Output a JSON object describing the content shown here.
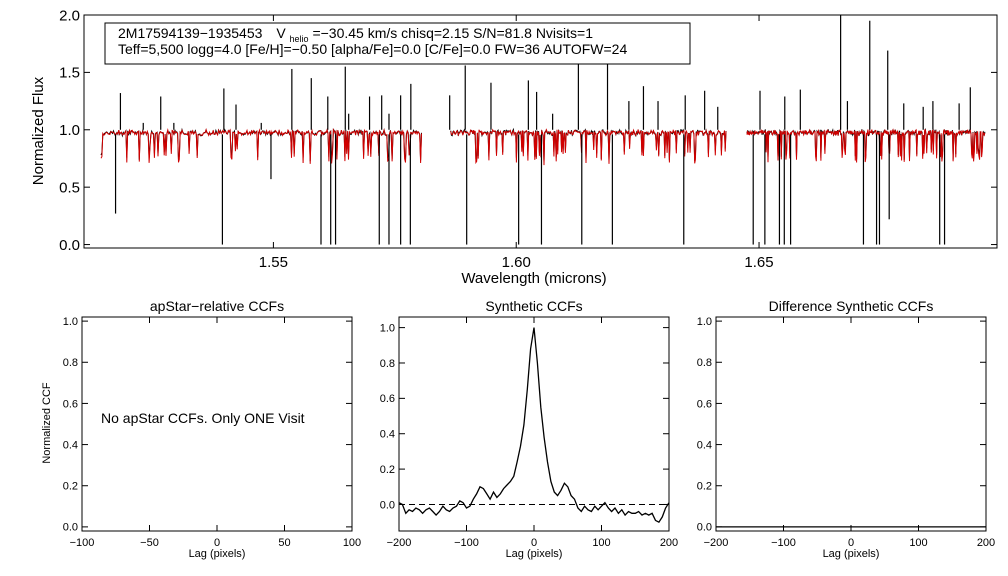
{
  "chart_data": [
    {
      "type": "line",
      "id": "spectrum",
      "ylabel": "Normalized Flux",
      "xlabel": "Wavelength (microns)",
      "xlim": [
        1.511,
        1.699
      ],
      "ylim": [
        -0.03,
        2.0
      ],
      "xticks": [
        1.55,
        1.6,
        1.65
      ],
      "xtick_labels": [
        "1.55",
        "1.60",
        "1.65"
      ],
      "yticks": [
        0.0,
        0.5,
        1.0,
        1.5,
        2.0
      ],
      "ytick_labels": [
        "0.0",
        "0.5",
        "1.0",
        "1.5",
        "2.0"
      ],
      "info_line1": {
        "star": "2M17594139−1935453",
        "v_label": "V",
        "v_sub": "helio",
        "v_rest": "=−30.45 km/s  chisq=2.15  S/N=81.8  Nvisits=1"
      },
      "info_line2": "Teff=5,500 logg=4.0 [Fe/H]=−0.50 [alpha/Fe]=0.0 [C/Fe]=0.0 FW=36 AUTOFW=24",
      "series": [
        {
          "role": "observed",
          "color": "#000000",
          "chips": [
            [
              1.5145,
              1.5805
            ],
            [
              1.5865,
              1.6432
            ],
            [
              1.6475,
              1.6965
            ]
          ]
        },
        {
          "role": "model",
          "color": "#d00000",
          "chips": [
            [
              1.5145,
              1.5805
            ],
            [
              1.5865,
              1.6432
            ],
            [
              1.6475,
              1.6965
            ]
          ]
        }
      ],
      "emission_spikes": [
        [
          1.5185,
          1.32
        ],
        [
          1.5232,
          1.06
        ],
        [
          1.5268,
          1.29
        ],
        [
          1.5295,
          1.06
        ],
        [
          1.5398,
          1.36
        ],
        [
          1.5423,
          1.22
        ],
        [
          1.5475,
          1.06
        ],
        [
          1.5538,
          1.53
        ],
        [
          1.5578,
          1.45
        ],
        [
          1.5612,
          1.29
        ],
        [
          1.5648,
          1.55
        ],
        [
          1.5655,
          1.14
        ],
        [
          1.5698,
          1.29
        ],
        [
          1.5723,
          1.3
        ],
        [
          1.5738,
          1.14
        ],
        [
          1.5762,
          1.3
        ],
        [
          1.5783,
          1.4
        ],
        [
          1.5863,
          1.3
        ],
        [
          1.5895,
          1.56
        ],
        [
          1.5948,
          1.41
        ],
        [
          1.6025,
          1.43
        ],
        [
          1.6042,
          1.33
        ],
        [
          1.6075,
          1.14
        ],
        [
          1.6128,
          1.79
        ],
        [
          1.6188,
          1.79
        ],
        [
          1.6232,
          1.25
        ],
        [
          1.6262,
          1.38
        ],
        [
          1.6292,
          1.25
        ],
        [
          1.6348,
          1.3
        ],
        [
          1.6388,
          1.34
        ],
        [
          1.6415,
          1.2
        ],
        [
          1.6502,
          1.34
        ],
        [
          1.6553,
          1.29
        ],
        [
          1.6585,
          1.35
        ],
        [
          1.6668,
          2.0
        ],
        [
          1.6682,
          1.25
        ],
        [
          1.6728,
          1.95
        ],
        [
          1.6765,
          1.69
        ],
        [
          1.6798,
          1.23
        ],
        [
          1.6838,
          1.2
        ],
        [
          1.6858,
          1.25
        ],
        [
          1.6912,
          1.23
        ],
        [
          1.6935,
          1.37
        ]
      ],
      "absorption_spikes": [
        [
          1.5175,
          0.27
        ],
        [
          1.5395,
          0.0
        ],
        [
          1.5495,
          0.57
        ],
        [
          1.5598,
          0.0
        ],
        [
          1.5618,
          0.0
        ],
        [
          1.5628,
          0.0
        ],
        [
          1.5718,
          0.0
        ],
        [
          1.5738,
          0.0
        ],
        [
          1.5762,
          0.0
        ],
        [
          1.5782,
          0.0
        ],
        [
          1.5898,
          0.0
        ],
        [
          1.6005,
          0.0
        ],
        [
          1.6052,
          0.0
        ],
        [
          1.6135,
          0.0
        ],
        [
          1.6198,
          0.0
        ],
        [
          1.6345,
          0.0
        ],
        [
          1.6488,
          0.0
        ],
        [
          1.6512,
          0.0
        ],
        [
          1.6542,
          0.0
        ],
        [
          1.6552,
          0.0
        ],
        [
          1.6565,
          0.0
        ],
        [
          1.6715,
          0.0
        ],
        [
          1.6742,
          0.0
        ],
        [
          1.6748,
          0.0
        ],
        [
          1.6768,
          0.22
        ],
        [
          1.6872,
          0.0
        ],
        [
          1.6882,
          0.0
        ]
      ]
    },
    {
      "type": "line",
      "id": "apstar-ccf",
      "title": "apStar−relative CCFs",
      "ylabel": "Normalized CCF",
      "xlabel": "Lag (pixels)",
      "xlim": [
        -100,
        100
      ],
      "ylim": [
        -0.02,
        1.02
      ],
      "xticks": [
        -100,
        -50,
        0,
        50,
        100
      ],
      "xtick_labels": [
        "−100",
        "−50",
        "0",
        "50",
        "100"
      ],
      "yticks": [
        0.0,
        0.2,
        0.4,
        0.6,
        0.8,
        1.0
      ],
      "ytick_labels": [
        "0.0",
        "0.2",
        "0.4",
        "0.6",
        "0.8",
        "1.0"
      ],
      "message": "No apStar CCFs.  Only ONE Visit",
      "series": []
    },
    {
      "type": "line",
      "id": "synthetic-ccf",
      "title": "Synthetic CCFs",
      "xlabel": "Lag (pixels)",
      "xlim": [
        -200,
        200
      ],
      "ylim": [
        -0.15,
        1.06
      ],
      "xticks": [
        -200,
        -100,
        0,
        100,
        200
      ],
      "xtick_labels": [
        "−200",
        "−100",
        "0",
        "100",
        "200"
      ],
      "yticks": [
        0.0,
        0.2,
        0.4,
        0.6,
        0.8,
        1.0
      ],
      "ytick_labels": [
        "0.0",
        "0.2",
        "0.4",
        "0.6",
        "0.8",
        "1.0"
      ],
      "zero_line": true,
      "series": [
        {
          "color": "#000000",
          "x": [
            -200,
            -195,
            -190,
            -185,
            -180,
            -175,
            -170,
            -165,
            -160,
            -155,
            -150,
            -145,
            -140,
            -135,
            -130,
            -125,
            -120,
            -115,
            -110,
            -105,
            -100,
            -95,
            -90,
            -85,
            -80,
            -75,
            -70,
            -65,
            -60,
            -55,
            -50,
            -45,
            -40,
            -35,
            -30,
            -25,
            -20,
            -15,
            -10,
            -5,
            0,
            5,
            10,
            15,
            20,
            25,
            30,
            35,
            40,
            45,
            50,
            55,
            60,
            65,
            70,
            75,
            80,
            85,
            90,
            95,
            100,
            105,
            110,
            115,
            120,
            125,
            130,
            135,
            140,
            145,
            150,
            155,
            160,
            165,
            170,
            175,
            180,
            185,
            190,
            195,
            200
          ],
          "y": [
            0.01,
            0.0,
            -0.05,
            -0.03,
            -0.04,
            -0.02,
            -0.03,
            -0.05,
            -0.03,
            -0.02,
            -0.04,
            -0.06,
            -0.04,
            -0.01,
            -0.03,
            -0.04,
            -0.02,
            -0.01,
            0.02,
            0.01,
            -0.02,
            -0.01,
            0.03,
            0.06,
            0.1,
            0.09,
            0.06,
            0.03,
            0.07,
            0.04,
            0.06,
            0.09,
            0.11,
            0.13,
            0.16,
            0.24,
            0.33,
            0.45,
            0.65,
            0.88,
            1.0,
            0.8,
            0.55,
            0.38,
            0.24,
            0.13,
            0.07,
            0.05,
            0.08,
            0.12,
            0.1,
            0.05,
            0.03,
            -0.02,
            -0.04,
            -0.01,
            -0.03,
            -0.04,
            -0.01,
            -0.03,
            -0.01,
            0.01,
            -0.02,
            -0.04,
            -0.02,
            -0.05,
            -0.03,
            -0.06,
            -0.04,
            -0.05,
            -0.05,
            -0.04,
            -0.06,
            -0.05,
            -0.06,
            -0.05,
            -0.09,
            -0.1,
            -0.07,
            -0.02,
            0.01
          ]
        }
      ]
    },
    {
      "type": "line",
      "id": "difference-ccf",
      "title": "Difference Synthetic CCFs",
      "xlabel": "Lag (pixels)",
      "xlim": [
        -200,
        200
      ],
      "ylim": [
        -0.02,
        1.02
      ],
      "xticks": [
        -200,
        -100,
        0,
        100,
        200
      ],
      "xtick_labels": [
        "−200",
        "−100",
        "0",
        "100",
        "200"
      ],
      "yticks": [
        0.0,
        0.2,
        0.4,
        0.6,
        0.8,
        1.0
      ],
      "ytick_labels": [
        "0.0",
        "0.2",
        "0.4",
        "0.6",
        "0.8",
        "1.0"
      ],
      "series": [
        {
          "color": "#000000",
          "x": [
            -200,
            200
          ],
          "y": [
            0.0,
            0.0
          ]
        }
      ]
    }
  ]
}
